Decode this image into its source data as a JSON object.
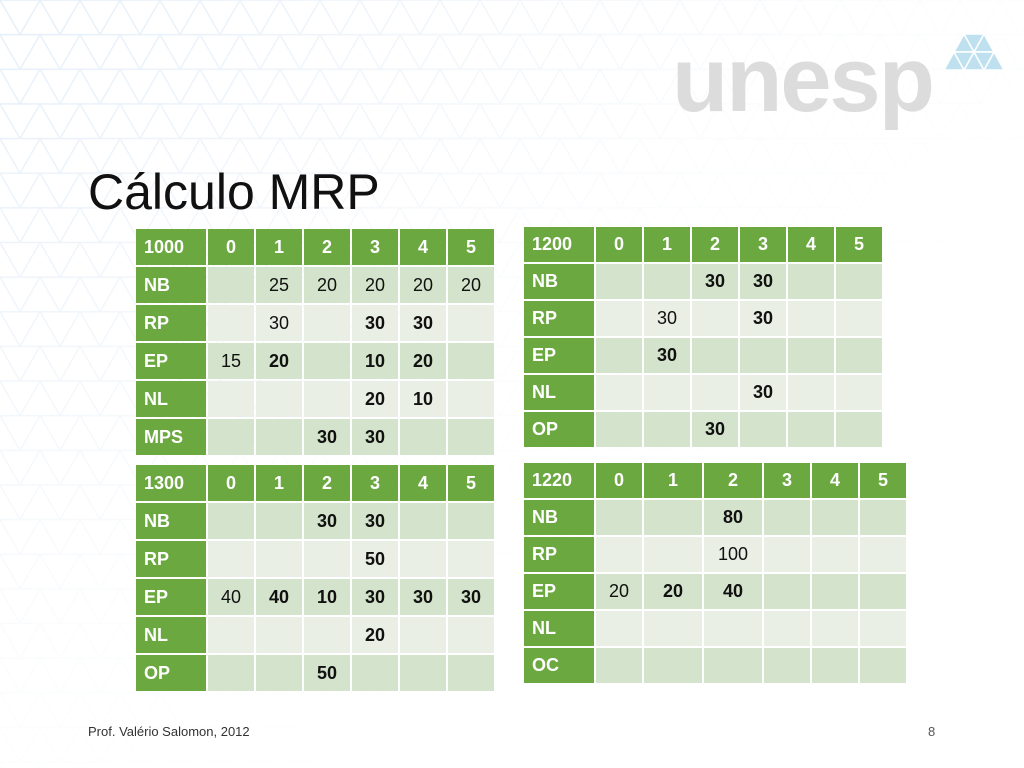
{
  "slide": {
    "logo_text": "unesp",
    "title": "Cálculo MRP",
    "footer_author": "Prof. Valério Salomon, 2012",
    "page_number": "8"
  },
  "colors": {
    "header_green": "#6ba83f",
    "cell_light": "#d4e3cb",
    "cell_lighter": "#e9efe5"
  },
  "tables": [
    {
      "id": "t1000",
      "header": [
        "1000",
        "0",
        "1",
        "2",
        "3",
        "4",
        "5"
      ],
      "rows": [
        {
          "label": "NB",
          "cells": [
            "",
            "25",
            "20",
            "20",
            "20",
            "20"
          ],
          "bold": [
            false,
            false,
            false,
            false,
            false,
            false
          ]
        },
        {
          "label": "RP",
          "cells": [
            "",
            "30",
            "",
            "30",
            "30",
            ""
          ],
          "bold": [
            false,
            false,
            false,
            true,
            true,
            false
          ]
        },
        {
          "label": "EP",
          "cells": [
            "15",
            "20",
            "",
            "10",
            "20",
            ""
          ],
          "bold": [
            false,
            true,
            false,
            true,
            true,
            false
          ]
        },
        {
          "label": "NL",
          "cells": [
            "",
            "",
            "",
            "20",
            "10",
            ""
          ],
          "bold": [
            false,
            false,
            false,
            true,
            true,
            false
          ]
        },
        {
          "label": "MPS",
          "cells": [
            "",
            "",
            "30",
            "30",
            "",
            ""
          ],
          "bold": [
            false,
            false,
            true,
            true,
            false,
            false
          ]
        }
      ]
    },
    {
      "id": "t1200",
      "header": [
        "1200",
        "0",
        "1",
        "2",
        "3",
        "4",
        "5"
      ],
      "rows": [
        {
          "label": "NB",
          "cells": [
            "",
            "",
            "30",
            "30",
            "",
            ""
          ],
          "bold": [
            false,
            false,
            true,
            true,
            false,
            false
          ]
        },
        {
          "label": "RP",
          "cells": [
            "",
            "30",
            "",
            "30",
            "",
            ""
          ],
          "bold": [
            false,
            false,
            false,
            true,
            false,
            false
          ]
        },
        {
          "label": "EP",
          "cells": [
            "",
            "30",
            "",
            "",
            "",
            ""
          ],
          "bold": [
            false,
            true,
            false,
            false,
            false,
            false
          ]
        },
        {
          "label": "NL",
          "cells": [
            "",
            "",
            "",
            "30",
            "",
            ""
          ],
          "bold": [
            false,
            false,
            false,
            true,
            false,
            false
          ]
        },
        {
          "label": "OP",
          "cells": [
            "",
            "",
            "30",
            "",
            "",
            ""
          ],
          "bold": [
            false,
            false,
            true,
            false,
            false,
            false
          ]
        }
      ]
    },
    {
      "id": "t1300",
      "header": [
        "1300",
        "0",
        "1",
        "2",
        "3",
        "4",
        "5"
      ],
      "rows": [
        {
          "label": "NB",
          "cells": [
            "",
            "",
            "30",
            "30",
            "",
            ""
          ],
          "bold": [
            false,
            false,
            true,
            true,
            false,
            false
          ]
        },
        {
          "label": "RP",
          "cells": [
            "",
            "",
            "",
            "50",
            "",
            ""
          ],
          "bold": [
            false,
            false,
            false,
            true,
            false,
            false
          ]
        },
        {
          "label": "EP",
          "cells": [
            "40",
            "40",
            "10",
            "30",
            "30",
            "30"
          ],
          "bold": [
            false,
            true,
            true,
            true,
            true,
            true
          ]
        },
        {
          "label": "NL",
          "cells": [
            "",
            "",
            "",
            "20",
            "",
            ""
          ],
          "bold": [
            false,
            false,
            false,
            true,
            false,
            false
          ]
        },
        {
          "label": "OP",
          "cells": [
            "",
            "",
            "50",
            "",
            "",
            ""
          ],
          "bold": [
            false,
            false,
            true,
            false,
            false,
            false
          ]
        }
      ]
    },
    {
      "id": "t1220",
      "header": [
        "1220",
        "0",
        "1",
        "2",
        "3",
        "4",
        "5"
      ],
      "rows": [
        {
          "label": "NB",
          "cells": [
            "",
            "",
            "80",
            "",
            "",
            ""
          ],
          "bold": [
            false,
            false,
            true,
            false,
            false,
            false
          ]
        },
        {
          "label": "RP",
          "cells": [
            "",
            "",
            "100",
            "",
            "",
            ""
          ],
          "bold": [
            false,
            false,
            false,
            false,
            false,
            false
          ]
        },
        {
          "label": "EP",
          "cells": [
            "20",
            "20",
            "40",
            "",
            "",
            ""
          ],
          "bold": [
            false,
            true,
            true,
            false,
            false,
            false
          ]
        },
        {
          "label": "NL",
          "cells": [
            "",
            "",
            "",
            "",
            "",
            ""
          ],
          "bold": [
            false,
            false,
            false,
            false,
            false,
            false
          ]
        },
        {
          "label": "OC",
          "cells": [
            "",
            "",
            "",
            "",
            "",
            ""
          ],
          "bold": [
            false,
            false,
            false,
            false,
            false,
            false
          ]
        }
      ]
    }
  ]
}
